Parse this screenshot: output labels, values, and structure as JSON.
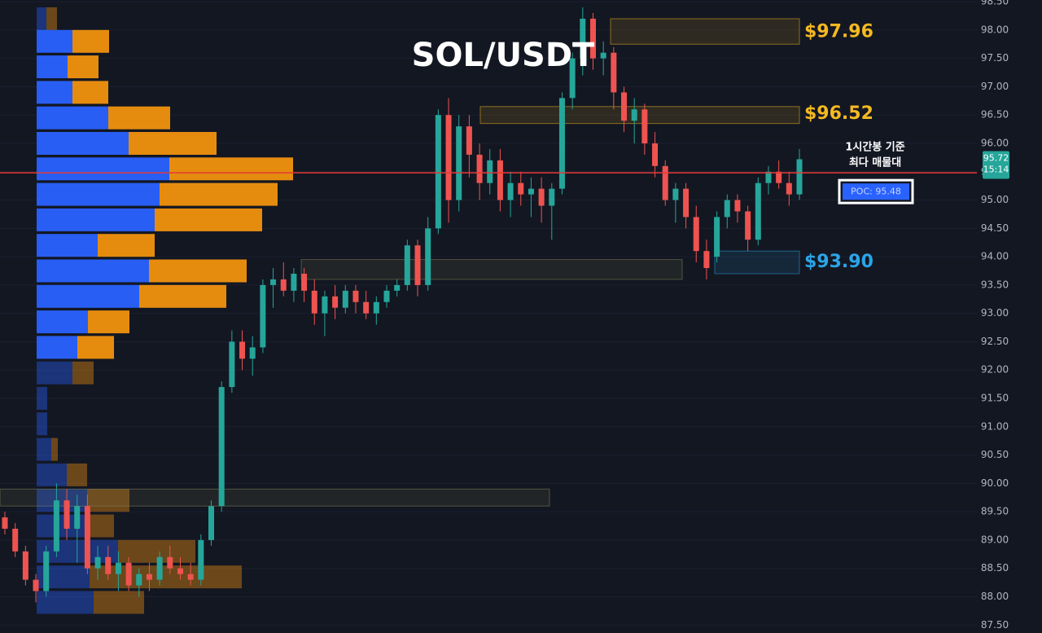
{
  "chart_data": {
    "type": "candlestick",
    "title": "SOL/USDT",
    "ylim": [
      87.36,
      98.53
    ],
    "yticks": [
      {
        "value": 87.5,
        "label": "87.50"
      },
      {
        "value": 88,
        "label": "88.00"
      },
      {
        "value": 88.5,
        "label": "88.50"
      },
      {
        "value": 89,
        "label": "89.00"
      },
      {
        "value": 89.5,
        "label": "89.50"
      },
      {
        "value": 90,
        "label": "90.00"
      },
      {
        "value": 90.5,
        "label": "90.50"
      },
      {
        "value": 91,
        "label": "91.00"
      },
      {
        "value": 91.5,
        "label": "91.50"
      },
      {
        "value": 92,
        "label": "92.00"
      },
      {
        "value": 92.5,
        "label": "92.50"
      },
      {
        "value": 93,
        "label": "93.00"
      },
      {
        "value": 93.5,
        "label": "93.50"
      },
      {
        "value": 94,
        "label": "94.00"
      },
      {
        "value": 94.5,
        "label": "94.50"
      },
      {
        "value": 95,
        "label": "95.00"
      },
      {
        "value": 95.5,
        "label": "95.50"
      },
      {
        "value": 96,
        "label": "96.00"
      },
      {
        "value": 96.5,
        "label": "96.50"
      },
      {
        "value": 97,
        "label": "97.00"
      },
      {
        "value": 97.5,
        "label": "97.50"
      },
      {
        "value": 98,
        "label": "98.00"
      },
      {
        "value": 98.5,
        "label": "98.50"
      }
    ],
    "grid": true,
    "up_color": "#26a69a",
    "down_color": "#ef5350",
    "candles": [
      [
        89.4,
        89.5,
        89.1,
        89.2
      ],
      [
        89.2,
        89.3,
        88.7,
        88.8
      ],
      [
        88.8,
        88.9,
        88.2,
        88.3
      ],
      [
        88.3,
        88.4,
        87.9,
        88.1
      ],
      [
        88.1,
        88.9,
        88.0,
        88.8
      ],
      [
        88.8,
        90.0,
        88.7,
        89.7
      ],
      [
        89.7,
        89.9,
        89.0,
        89.2
      ],
      [
        89.2,
        89.8,
        88.6,
        89.6
      ],
      [
        89.6,
        89.8,
        88.4,
        88.5
      ],
      [
        88.5,
        88.9,
        88.3,
        88.7
      ],
      [
        88.7,
        88.9,
        88.3,
        88.4
      ],
      [
        88.4,
        88.8,
        88.1,
        88.6
      ],
      [
        88.6,
        88.7,
        88.1,
        88.2
      ],
      [
        88.2,
        88.5,
        88.0,
        88.4
      ],
      [
        88.4,
        88.6,
        88.1,
        88.3
      ],
      [
        88.3,
        88.8,
        88.2,
        88.7
      ],
      [
        88.7,
        88.9,
        88.4,
        88.5
      ],
      [
        88.5,
        88.7,
        88.3,
        88.4
      ],
      [
        88.4,
        88.6,
        88.2,
        88.3
      ],
      [
        88.3,
        89.1,
        88.2,
        89.0
      ],
      [
        89.0,
        89.7,
        88.9,
        89.6
      ],
      [
        89.6,
        91.8,
        89.5,
        91.7
      ],
      [
        91.7,
        92.7,
        91.6,
        92.5
      ],
      [
        92.5,
        92.7,
        92.0,
        92.2
      ],
      [
        92.2,
        92.6,
        91.9,
        92.4
      ],
      [
        92.4,
        93.6,
        92.3,
        93.5
      ],
      [
        93.5,
        93.8,
        93.1,
        93.6
      ],
      [
        93.6,
        93.9,
        93.3,
        93.4
      ],
      [
        93.4,
        93.8,
        93.2,
        93.7
      ],
      [
        93.7,
        93.8,
        93.2,
        93.4
      ],
      [
        93.4,
        93.6,
        92.8,
        93.0
      ],
      [
        93.0,
        93.4,
        92.6,
        93.3
      ],
      [
        93.3,
        93.5,
        92.9,
        93.1
      ],
      [
        93.1,
        93.5,
        93.0,
        93.4
      ],
      [
        93.4,
        93.5,
        93.0,
        93.2
      ],
      [
        93.2,
        93.4,
        92.9,
        93.0
      ],
      [
        93.0,
        93.3,
        92.8,
        93.2
      ],
      [
        93.2,
        93.5,
        93.1,
        93.4
      ],
      [
        93.4,
        93.6,
        93.3,
        93.5
      ],
      [
        93.5,
        94.3,
        93.4,
        94.2
      ],
      [
        94.2,
        94.3,
        93.3,
        93.5
      ],
      [
        93.5,
        94.7,
        93.4,
        94.5
      ],
      [
        94.5,
        96.6,
        94.4,
        96.5
      ],
      [
        96.5,
        96.8,
        94.6,
        95.0
      ],
      [
        95.0,
        96.5,
        94.8,
        96.3
      ],
      [
        96.3,
        96.5,
        95.4,
        95.8
      ],
      [
        95.8,
        96.0,
        95.0,
        95.3
      ],
      [
        95.3,
        95.9,
        95.1,
        95.7
      ],
      [
        95.7,
        95.9,
        94.8,
        95.0
      ],
      [
        95.0,
        95.5,
        94.7,
        95.3
      ],
      [
        95.3,
        95.5,
        94.9,
        95.1
      ],
      [
        95.1,
        95.4,
        94.7,
        95.2
      ],
      [
        95.2,
        95.4,
        94.6,
        94.9
      ],
      [
        94.9,
        95.3,
        94.3,
        95.2
      ],
      [
        95.2,
        96.9,
        95.1,
        96.8
      ],
      [
        96.8,
        97.6,
        96.6,
        97.5
      ],
      [
        97.5,
        98.4,
        97.2,
        98.2
      ],
      [
        98.2,
        98.3,
        97.3,
        97.5
      ],
      [
        97.5,
        97.8,
        97.2,
        97.6
      ],
      [
        97.6,
        97.7,
        96.6,
        96.9
      ],
      [
        96.9,
        97.0,
        96.2,
        96.4
      ],
      [
        96.4,
        96.8,
        96.0,
        96.6
      ],
      [
        96.6,
        96.7,
        95.8,
        96.0
      ],
      [
        96.0,
        96.2,
        95.4,
        95.6
      ],
      [
        95.6,
        95.7,
        94.9,
        95.0
      ],
      [
        95.0,
        95.3,
        94.6,
        95.2
      ],
      [
        95.2,
        95.3,
        94.5,
        94.7
      ],
      [
        94.7,
        94.9,
        93.9,
        94.1
      ],
      [
        94.1,
        94.3,
        93.6,
        93.8
      ],
      [
        94.0,
        94.8,
        93.9,
        94.7
      ],
      [
        94.7,
        95.1,
        94.5,
        95.0
      ],
      [
        95.0,
        95.1,
        94.6,
        94.8
      ],
      [
        94.8,
        94.9,
        94.1,
        94.3
      ],
      [
        94.3,
        95.4,
        94.2,
        95.3
      ],
      [
        95.3,
        95.6,
        95.1,
        95.5
      ],
      [
        95.5,
        95.7,
        95.2,
        95.3
      ],
      [
        95.3,
        95.5,
        94.9,
        95.1
      ],
      [
        95.1,
        95.9,
        95.0,
        95.72
      ]
    ],
    "volume_profile": {
      "levels": [
        98.2,
        97.8,
        97.35,
        96.9,
        96.45,
        96.0,
        95.55,
        95.1,
        94.65,
        94.2,
        93.75,
        93.3,
        92.85,
        92.4,
        91.95,
        91.5,
        91.05,
        90.6,
        90.15,
        89.7,
        89.25,
        88.8,
        88.35,
        87.9
      ],
      "buy": [
        12,
        44,
        38,
        44,
        88,
        113,
        163,
        151,
        145,
        75,
        138,
        126,
        63,
        50,
        44,
        13,
        13,
        18,
        37,
        62,
        60,
        100,
        65,
        70
      ],
      "sell": [
        13,
        45,
        38,
        44,
        76,
        108,
        152,
        145,
        132,
        70,
        120,
        107,
        51,
        45,
        26,
        0,
        0,
        8,
        25,
        52,
        35,
        95,
        187,
        62
      ],
      "buy_color": "#2962ff",
      "sell_color": "#f0920f",
      "value_area": [
        92.2,
        98.0
      ]
    },
    "zones": [
      {
        "range": [
          97.75,
          98.2
        ],
        "value": 97.96,
        "label": "$97.96",
        "color": "#f5b921"
      },
      {
        "range": [
          96.35,
          96.65
        ],
        "value": 96.52,
        "label": "$96.52",
        "color": "#f5b921"
      },
      {
        "range": [
          93.7,
          94.1
        ],
        "value": 93.9,
        "label": "$93.90",
        "color": "#2aa5e8"
      },
      {
        "range": [
          93.6,
          93.95
        ],
        "color": "#8a8a5a"
      },
      {
        "range": [
          89.6,
          89.9
        ],
        "color": "#8a8a5a"
      }
    ],
    "poc": {
      "value": 95.48,
      "label": "POC: 95.48",
      "color": "#e53935"
    },
    "annotation": [
      "1시간봉 기준",
      "최다 매물대"
    ],
    "last_price": 95.72,
    "timer": "15:14"
  }
}
